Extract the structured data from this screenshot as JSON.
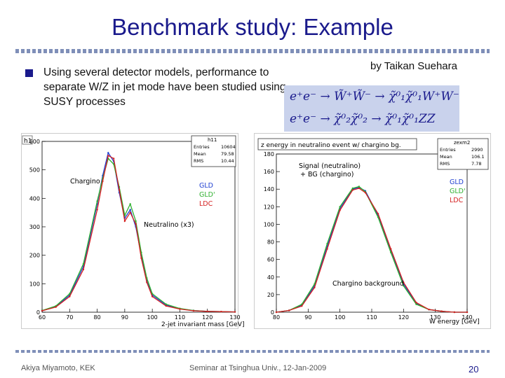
{
  "slide": {
    "title": "Benchmark study: Example",
    "author": "by Taikan Suehara",
    "bullet": "Using several detector models, performance to separate W/Z in jet mode have been studied using SUSY processes",
    "eq1": "e⁺e⁻ → W̃⁺W̃⁻ → χ̃⁰₁χ̃⁰₁W⁺W⁻",
    "eq2": "e⁺e⁻ → χ̃⁰₂χ̃⁰₂ → χ̃⁰₁χ̃⁰₁ZZ"
  },
  "footer": {
    "left": "Akiya Miyamoto, KEK",
    "center": "Seminar at Tsinghua Univ., 12-Jan-2009",
    "page": "20"
  },
  "colors": {
    "gld": "#1f3fd1",
    "gldprime": "#2fb02f",
    "ldc": "#d42020"
  },
  "chart_data": [
    {
      "type": "line",
      "hist_name": "h1",
      "stats": {
        "name": "h11",
        "entries": "10604",
        "mean": "79.58",
        "rms": "10.44"
      },
      "xlabel": "2-jet invariant mass [GeV]",
      "x_ticks": [
        60,
        70,
        80,
        90,
        100,
        110,
        120,
        130
      ],
      "y_ticks": [
        0,
        100,
        200,
        300,
        400,
        500,
        600
      ],
      "xlim": [
        60,
        130
      ],
      "ylim": [
        0,
        600
      ],
      "annotations": [
        "Chargino",
        "Neutralino (x3)"
      ],
      "x": [
        60,
        65,
        70,
        75,
        80,
        82,
        84,
        86,
        88,
        90,
        92,
        94,
        96,
        98,
        100,
        105,
        110,
        115,
        120,
        125,
        130
      ],
      "series": [
        {
          "name": "GLD",
          "values": [
            5,
            20,
            60,
            160,
            380,
            480,
            560,
            530,
            420,
            330,
            360,
            300,
            200,
            110,
            60,
            25,
            12,
            6,
            3,
            2,
            1
          ]
        },
        {
          "name": "GLD'",
          "values": [
            6,
            22,
            65,
            170,
            390,
            470,
            540,
            520,
            440,
            340,
            380,
            320,
            210,
            120,
            65,
            28,
            13,
            6,
            3,
            2,
            1
          ]
        },
        {
          "name": "LDC",
          "values": [
            5,
            18,
            55,
            150,
            360,
            460,
            550,
            540,
            430,
            320,
            350,
            310,
            190,
            105,
            55,
            22,
            11,
            5,
            3,
            2,
            1
          ]
        }
      ]
    },
    {
      "type": "line",
      "hist_name": "zexm2",
      "plot_title": "z energy in neutralino event w/ chargino bg.",
      "stats": {
        "name": "zexm2",
        "entries": "2990",
        "mean": "106.1",
        "rms": "7.78"
      },
      "xlabel": "W energy [GeV]",
      "x_ticks": [
        80,
        90,
        100,
        110,
        120,
        130,
        140
      ],
      "y_ticks": [
        0,
        20,
        40,
        60,
        80,
        100,
        120,
        140,
        160,
        180
      ],
      "xlim": [
        80,
        140
      ],
      "ylim": [
        0,
        180
      ],
      "annotations": [
        "Signal (neutralino)",
        "+ BG (chargino)",
        "Chargino background"
      ],
      "x": [
        80,
        84,
        88,
        92,
        96,
        100,
        104,
        106,
        108,
        112,
        116,
        120,
        124,
        128,
        132,
        136,
        140
      ],
      "series": [
        {
          "name": "GLD",
          "values": [
            0,
            2,
            8,
            30,
            75,
            118,
            140,
            142,
            138,
            110,
            70,
            32,
            10,
            3,
            1,
            0,
            0
          ]
        },
        {
          "name": "GLD'",
          "values": [
            0,
            2,
            9,
            32,
            78,
            120,
            141,
            143,
            137,
            108,
            68,
            30,
            9,
            3,
            1,
            0,
            0
          ]
        },
        {
          "name": "LDC",
          "values": [
            0,
            2,
            7,
            28,
            72,
            116,
            139,
            141,
            136,
            112,
            72,
            34,
            11,
            3,
            1,
            0,
            0
          ]
        }
      ]
    }
  ]
}
